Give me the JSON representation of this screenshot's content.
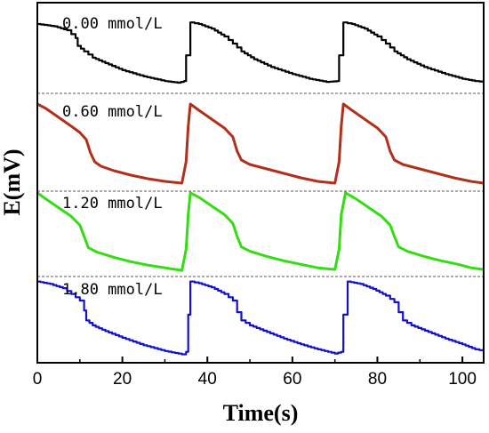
{
  "chart_data": {
    "type": "line",
    "xlabel": "Time(s)",
    "ylabel": "E(mV)",
    "xlim": [
      0,
      105
    ],
    "xticks": [
      0,
      20,
      40,
      60,
      80,
      100
    ],
    "grid": false,
    "panel_separators": "dashed",
    "series": [
      {
        "name": "0.00 mmol/L",
        "color": "#000000",
        "style": "stepped",
        "points": [
          [
            0,
            0.83
          ],
          [
            4,
            0.8
          ],
          [
            7,
            0.75
          ],
          [
            9,
            0.65
          ],
          [
            9.5,
            0.55
          ],
          [
            11,
            0.48
          ],
          [
            13,
            0.4
          ],
          [
            16,
            0.33
          ],
          [
            20,
            0.24
          ],
          [
            25,
            0.16
          ],
          [
            30,
            0.1
          ],
          [
            33,
            0.08
          ],
          [
            34.5,
            0.1
          ],
          [
            35,
            0.43
          ],
          [
            36,
            0.85
          ],
          [
            38,
            0.83
          ],
          [
            41,
            0.77
          ],
          [
            44,
            0.67
          ],
          [
            46,
            0.58
          ],
          [
            48,
            0.48
          ],
          [
            51,
            0.38
          ],
          [
            55,
            0.28
          ],
          [
            60,
            0.19
          ],
          [
            64,
            0.13
          ],
          [
            68,
            0.09
          ],
          [
            70.5,
            0.1
          ],
          [
            71,
            0.43
          ],
          [
            72,
            0.85
          ],
          [
            74,
            0.83
          ],
          [
            77,
            0.77
          ],
          [
            80,
            0.67
          ],
          [
            82,
            0.58
          ],
          [
            84,
            0.48
          ],
          [
            87,
            0.38
          ],
          [
            91,
            0.28
          ],
          [
            96,
            0.19
          ],
          [
            100,
            0.13
          ],
          [
            103,
            0.1
          ],
          [
            105,
            0.09
          ]
        ]
      },
      {
        "name": "0.60 mmol/L",
        "color": "#b0301c",
        "style": "smooth",
        "points": [
          [
            0,
            0.95
          ],
          [
            2,
            0.9
          ],
          [
            5,
            0.8
          ],
          [
            8,
            0.7
          ],
          [
            10,
            0.63
          ],
          [
            11.5,
            0.55
          ],
          [
            12.5,
            0.4
          ],
          [
            13.5,
            0.3
          ],
          [
            15,
            0.25
          ],
          [
            18,
            0.2
          ],
          [
            22,
            0.15
          ],
          [
            26,
            0.11
          ],
          [
            30,
            0.08
          ],
          [
            34,
            0.06
          ],
          [
            35,
            0.3
          ],
          [
            35.5,
            0.7
          ],
          [
            36,
            0.95
          ],
          [
            38,
            0.88
          ],
          [
            41,
            0.78
          ],
          [
            44,
            0.68
          ],
          [
            46,
            0.58
          ],
          [
            47,
            0.42
          ],
          [
            48,
            0.32
          ],
          [
            50,
            0.27
          ],
          [
            54,
            0.22
          ],
          [
            58,
            0.17
          ],
          [
            62,
            0.12
          ],
          [
            66,
            0.08
          ],
          [
            70,
            0.06
          ],
          [
            71,
            0.3
          ],
          [
            71.5,
            0.7
          ],
          [
            72,
            0.95
          ],
          [
            74,
            0.88
          ],
          [
            77,
            0.78
          ],
          [
            80,
            0.68
          ],
          [
            82,
            0.58
          ],
          [
            83,
            0.42
          ],
          [
            84,
            0.32
          ],
          [
            86,
            0.27
          ],
          [
            90,
            0.22
          ],
          [
            94,
            0.17
          ],
          [
            98,
            0.12
          ],
          [
            102,
            0.08
          ],
          [
            105,
            0.06
          ]
        ]
      },
      {
        "name": "1.20 mmol/L",
        "color": "#33dd11",
        "style": "smooth",
        "points": [
          [
            0,
            0.95
          ],
          [
            2,
            0.88
          ],
          [
            5,
            0.78
          ],
          [
            8,
            0.68
          ],
          [
            10,
            0.58
          ],
          [
            11,
            0.45
          ],
          [
            12,
            0.32
          ],
          [
            14,
            0.27
          ],
          [
            18,
            0.21
          ],
          [
            22,
            0.16
          ],
          [
            26,
            0.12
          ],
          [
            30,
            0.09
          ],
          [
            34,
            0.06
          ],
          [
            35,
            0.3
          ],
          [
            35.5,
            0.7
          ],
          [
            36,
            0.95
          ],
          [
            38,
            0.9
          ],
          [
            41,
            0.8
          ],
          [
            44,
            0.7
          ],
          [
            46,
            0.6
          ],
          [
            47,
            0.45
          ],
          [
            48,
            0.33
          ],
          [
            50,
            0.28
          ],
          [
            54,
            0.22
          ],
          [
            58,
            0.17
          ],
          [
            62,
            0.13
          ],
          [
            66,
            0.09
          ],
          [
            70,
            0.07
          ],
          [
            71,
            0.3
          ],
          [
            71.5,
            0.7
          ],
          [
            72.5,
            0.95
          ],
          [
            75,
            0.88
          ],
          [
            78,
            0.78
          ],
          [
            81,
            0.68
          ],
          [
            83,
            0.58
          ],
          [
            84,
            0.45
          ],
          [
            85,
            0.33
          ],
          [
            87,
            0.28
          ],
          [
            91,
            0.22
          ],
          [
            95,
            0.17
          ],
          [
            99,
            0.13
          ],
          [
            102,
            0.09
          ],
          [
            105,
            0.07
          ]
        ]
      },
      {
        "name": "1.80 mmol/L",
        "color": "#1111cc",
        "style": "stepped",
        "points": [
          [
            0,
            0.95
          ],
          [
            3,
            0.92
          ],
          [
            6,
            0.87
          ],
          [
            8,
            0.8
          ],
          [
            10,
            0.72
          ],
          [
            11,
            0.6
          ],
          [
            11.5,
            0.48
          ],
          [
            13,
            0.42
          ],
          [
            16,
            0.35
          ],
          [
            20,
            0.27
          ],
          [
            25,
            0.18
          ],
          [
            30,
            0.11
          ],
          [
            34,
            0.07
          ],
          [
            35,
            0.1
          ],
          [
            35.5,
            0.55
          ],
          [
            36,
            0.95
          ],
          [
            38,
            0.93
          ],
          [
            41,
            0.88
          ],
          [
            44,
            0.8
          ],
          [
            46,
            0.72
          ],
          [
            47,
            0.58
          ],
          [
            48,
            0.48
          ],
          [
            50,
            0.42
          ],
          [
            54,
            0.34
          ],
          [
            58,
            0.26
          ],
          [
            62,
            0.19
          ],
          [
            66,
            0.13
          ],
          [
            70,
            0.08
          ],
          [
            71.5,
            0.1
          ],
          [
            72,
            0.55
          ],
          [
            73,
            0.95
          ],
          [
            76,
            0.92
          ],
          [
            79,
            0.86
          ],
          [
            82,
            0.78
          ],
          [
            84,
            0.7
          ],
          [
            85,
            0.58
          ],
          [
            86,
            0.48
          ],
          [
            88,
            0.42
          ],
          [
            92,
            0.34
          ],
          [
            96,
            0.26
          ],
          [
            100,
            0.19
          ],
          [
            103,
            0.13
          ],
          [
            105,
            0.11
          ]
        ]
      }
    ]
  }
}
